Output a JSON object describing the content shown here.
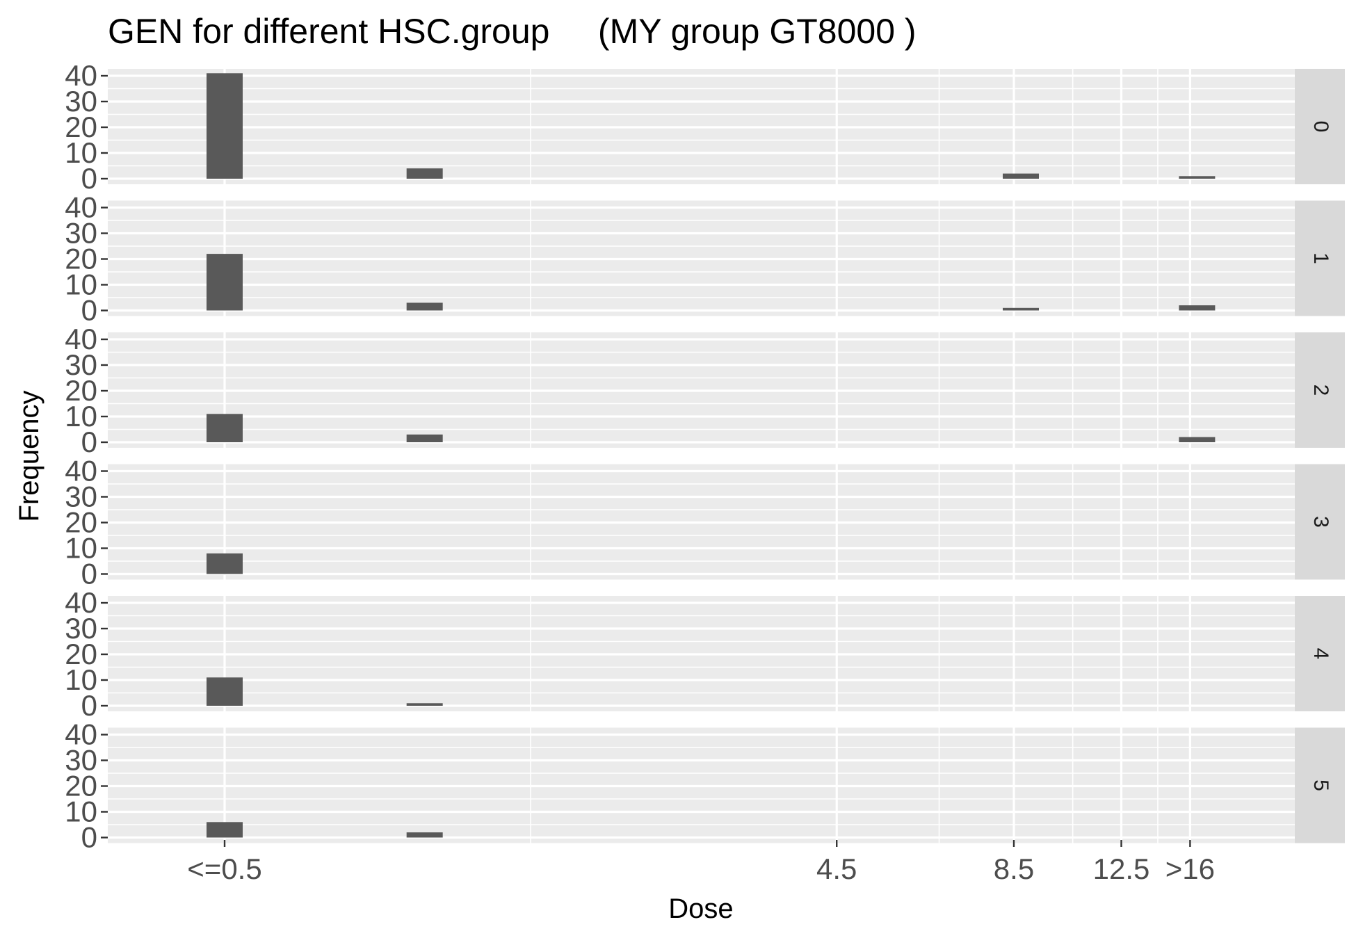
{
  "chart_data": {
    "type": "bar",
    "title": "GEN for different HSC.group     (MY group GT8000 )",
    "xlabel": "Dose",
    "ylabel": "Frequency",
    "x_scale": "log2",
    "x_tick_labels": [
      "<=0.5",
      "4.5",
      "8.5",
      "12.5",
      ">16"
    ],
    "y_ticks": [
      0,
      10,
      20,
      30,
      40
    ],
    "ylim": [
      0,
      42
    ],
    "grid": true,
    "facets": [
      {
        "label": "0",
        "bars": [
          {
            "x": 0.5,
            "y": 41
          },
          {
            "x": 1,
            "y": 4
          },
          {
            "x": 8.5,
            "y": 2
          },
          {
            "x": 16,
            "y": 1
          }
        ]
      },
      {
        "label": "1",
        "bars": [
          {
            "x": 0.5,
            "y": 22
          },
          {
            "x": 1,
            "y": 3
          },
          {
            "x": 8.5,
            "y": 1
          },
          {
            "x": 16,
            "y": 2
          }
        ]
      },
      {
        "label": "2",
        "bars": [
          {
            "x": 0.5,
            "y": 11
          },
          {
            "x": 1,
            "y": 3
          },
          {
            "x": 16,
            "y": 2
          }
        ]
      },
      {
        "label": "3",
        "bars": [
          {
            "x": 0.5,
            "y": 8
          }
        ]
      },
      {
        "label": "4",
        "bars": [
          {
            "x": 0.5,
            "y": 11
          },
          {
            "x": 1,
            "y": 1
          }
        ]
      },
      {
        "label": "5",
        "bars": [
          {
            "x": 0.5,
            "y": 6
          },
          {
            "x": 1,
            "y": 2
          }
        ]
      }
    ]
  },
  "colors": {
    "panel": "#ebebeb",
    "strip": "#d9d9d9",
    "bar": "#595959",
    "grid": "#ffffff"
  }
}
